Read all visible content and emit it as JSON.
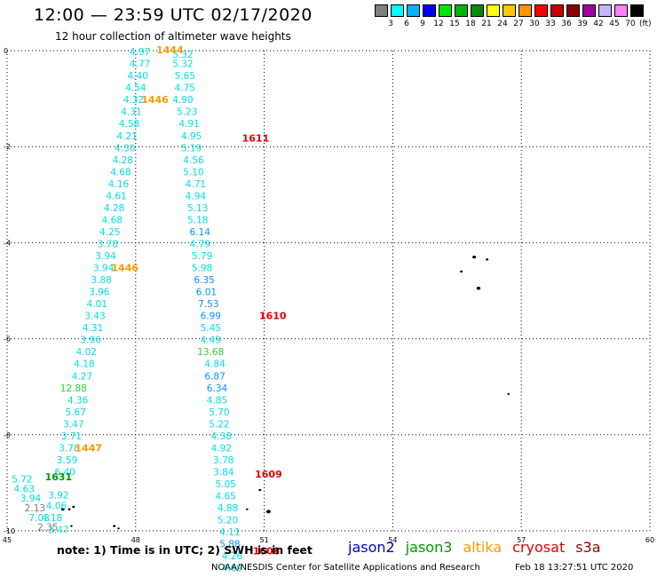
{
  "header": {
    "title": "12:00 — 23:59 UTC 02/17/2020",
    "subtitle": "12 hour collection of altimeter wave heights"
  },
  "legend": {
    "colors": [
      "#7f7f7f",
      "#00ffff",
      "#00b4ff",
      "#0000ff",
      "#00e600",
      "#00b400",
      "#008c00",
      "#ffff00",
      "#ffc800",
      "#ff9600",
      "#ff0000",
      "#c80000",
      "#8c0000",
      "#a000a0",
      "#c8b4ff",
      "#ff80ff",
      "#000000"
    ],
    "labels": [
      "3",
      "6",
      "9",
      "12",
      "15",
      "18",
      "21",
      "24",
      "27",
      "30",
      "33",
      "36",
      "39",
      "42",
      "45",
      "70"
    ],
    "unit": "(ft)"
  },
  "map": {
    "lon_range": [
      45,
      60
    ],
    "lat_range": [
      -10,
      0
    ],
    "x_ticks": [
      "45",
      "48",
      "51",
      "54",
      "57",
      "60"
    ],
    "y_ticks": [
      "0",
      "-2",
      "-4",
      "-6",
      "-8",
      "-10"
    ],
    "grid": "dotted",
    "colors": {
      "cyan": "#00e0e6",
      "blue": "#0096ff",
      "green": "#33cc33",
      "darkgreen": "#009600",
      "orange": "#ff9600",
      "red": "#e60000",
      "gray": "#7f7f7f"
    },
    "wave_heights": [
      {
        "text": "4.97",
        "lon": 48.1,
        "lat": -0.02,
        "c": "cyan"
      },
      {
        "text": "4.77",
        "lon": 48.1,
        "lat": -0.27,
        "c": "cyan"
      },
      {
        "text": "4.40",
        "lon": 48.05,
        "lat": -0.52,
        "c": "cyan"
      },
      {
        "text": "4.54",
        "lon": 48.0,
        "lat": -0.77,
        "c": "cyan"
      },
      {
        "text": "4.32",
        "lon": 47.95,
        "lat": -1.02,
        "c": "cyan"
      },
      {
        "text": "4.31",
        "lon": 47.9,
        "lat": -1.27,
        "c": "cyan"
      },
      {
        "text": "4.58",
        "lon": 47.85,
        "lat": -1.52,
        "c": "cyan"
      },
      {
        "text": "4.21",
        "lon": 47.8,
        "lat": -1.77,
        "c": "cyan"
      },
      {
        "text": "4.30",
        "lon": 47.75,
        "lat": -2.02,
        "c": "cyan"
      },
      {
        "text": "4.28",
        "lon": 47.7,
        "lat": -2.27,
        "c": "cyan"
      },
      {
        "text": "4.68",
        "lon": 47.65,
        "lat": -2.52,
        "c": "cyan"
      },
      {
        "text": "4.16",
        "lon": 47.6,
        "lat": -2.77,
        "c": "cyan"
      },
      {
        "text": "4.61",
        "lon": 47.55,
        "lat": -3.02,
        "c": "cyan"
      },
      {
        "text": "4.28",
        "lon": 47.5,
        "lat": -3.27,
        "c": "cyan"
      },
      {
        "text": "4.68",
        "lon": 47.45,
        "lat": -3.52,
        "c": "cyan"
      },
      {
        "text": "4.25",
        "lon": 47.4,
        "lat": -3.77,
        "c": "cyan"
      },
      {
        "text": "3.78",
        "lon": 47.35,
        "lat": -4.02,
        "c": "cyan"
      },
      {
        "text": "3.94",
        "lon": 47.3,
        "lat": -4.27,
        "c": "cyan"
      },
      {
        "text": "3.94",
        "lon": 47.25,
        "lat": -4.52,
        "c": "cyan"
      },
      {
        "text": "3.88",
        "lon": 47.2,
        "lat": -4.77,
        "c": "cyan"
      },
      {
        "text": "3.96",
        "lon": 47.15,
        "lat": -5.02,
        "c": "cyan"
      },
      {
        "text": "4.01",
        "lon": 47.1,
        "lat": -5.27,
        "c": "cyan"
      },
      {
        "text": "3.43",
        "lon": 47.05,
        "lat": -5.52,
        "c": "cyan"
      },
      {
        "text": "4.31",
        "lon": 47.0,
        "lat": -5.77,
        "c": "cyan"
      },
      {
        "text": "3.96",
        "lon": 46.95,
        "lat": -6.02,
        "c": "cyan"
      },
      {
        "text": "4.02",
        "lon": 46.85,
        "lat": -6.27,
        "c": "cyan"
      },
      {
        "text": "4.18",
        "lon": 46.8,
        "lat": -6.52,
        "c": "cyan"
      },
      {
        "text": "4.27",
        "lon": 46.75,
        "lat": -6.77,
        "c": "cyan"
      },
      {
        "text": "12.88",
        "lon": 46.55,
        "lat": -7.02,
        "c": "green"
      },
      {
        "text": "4.36",
        "lon": 46.65,
        "lat": -7.27,
        "c": "cyan"
      },
      {
        "text": "5.67",
        "lon": 46.6,
        "lat": -7.52,
        "c": "cyan"
      },
      {
        "text": "3.47",
        "lon": 46.55,
        "lat": -7.77,
        "c": "cyan"
      },
      {
        "text": "3.71",
        "lon": 46.5,
        "lat": -8.02,
        "c": "cyan"
      },
      {
        "text": "3.78",
        "lon": 46.45,
        "lat": -8.27,
        "c": "cyan"
      },
      {
        "text": "3.59",
        "lon": 46.4,
        "lat": -8.52,
        "c": "cyan"
      },
      {
        "text": "6.40",
        "lon": 46.35,
        "lat": -8.77,
        "c": "cyan"
      },
      {
        "text": "5.72",
        "lon": 45.35,
        "lat": -8.92,
        "c": "cyan"
      },
      {
        "text": "4.63",
        "lon": 45.4,
        "lat": -9.12,
        "c": "cyan"
      },
      {
        "text": "3.94",
        "lon": 45.55,
        "lat": -9.32,
        "c": "cyan"
      },
      {
        "text": "2.13",
        "lon": 45.65,
        "lat": -9.52,
        "c": "gray"
      },
      {
        "text": "7.03",
        "lon": 45.75,
        "lat": -9.72,
        "c": "cyan"
      },
      {
        "text": "2.35",
        "lon": 45.95,
        "lat": -9.92,
        "c": "gray"
      },
      {
        "text": "3.92",
        "lon": 46.2,
        "lat": -9.25,
        "c": "cyan"
      },
      {
        "text": "4.06",
        "lon": 46.15,
        "lat": -9.47,
        "c": "cyan"
      },
      {
        "text": "4.18",
        "lon": 46.05,
        "lat": -9.72,
        "c": "cyan"
      },
      {
        "text": "3.47",
        "lon": 46.2,
        "lat": -9.97,
        "c": "cyan"
      },
      {
        "text": "5.32",
        "lon": 49.1,
        "lat": -0.07,
        "c": "cyan"
      },
      {
        "text": "5.32",
        "lon": 49.1,
        "lat": -0.27,
        "c": "cyan"
      },
      {
        "text": "5.65",
        "lon": 49.15,
        "lat": -0.52,
        "c": "cyan"
      },
      {
        "text": "4.75",
        "lon": 49.15,
        "lat": -0.77,
        "c": "cyan"
      },
      {
        "text": "4.90",
        "lon": 49.1,
        "lat": -1.02,
        "c": "cyan"
      },
      {
        "text": "5.23",
        "lon": 49.2,
        "lat": -1.27,
        "c": "cyan"
      },
      {
        "text": "4.91",
        "lon": 49.25,
        "lat": -1.52,
        "c": "cyan"
      },
      {
        "text": "4.95",
        "lon": 49.3,
        "lat": -1.77,
        "c": "cyan"
      },
      {
        "text": "5.19",
        "lon": 49.3,
        "lat": -2.02,
        "c": "cyan"
      },
      {
        "text": "4.56",
        "lon": 49.35,
        "lat": -2.27,
        "c": "cyan"
      },
      {
        "text": "5.10",
        "lon": 49.35,
        "lat": -2.52,
        "c": "cyan"
      },
      {
        "text": "4.71",
        "lon": 49.4,
        "lat": -2.77,
        "c": "cyan"
      },
      {
        "text": "4.94",
        "lon": 49.4,
        "lat": -3.02,
        "c": "cyan"
      },
      {
        "text": "5.13",
        "lon": 49.45,
        "lat": -3.27,
        "c": "cyan"
      },
      {
        "text": "5.18",
        "lon": 49.45,
        "lat": -3.52,
        "c": "cyan"
      },
      {
        "text": "6.14",
        "lon": 49.5,
        "lat": -3.77,
        "c": "blue"
      },
      {
        "text": "4.79",
        "lon": 49.5,
        "lat": -4.02,
        "c": "cyan"
      },
      {
        "text": "5.79",
        "lon": 49.55,
        "lat": -4.27,
        "c": "cyan"
      },
      {
        "text": "5.98",
        "lon": 49.55,
        "lat": -4.52,
        "c": "cyan"
      },
      {
        "text": "6.35",
        "lon": 49.6,
        "lat": -4.77,
        "c": "blue"
      },
      {
        "text": "6.01",
        "lon": 49.65,
        "lat": -5.02,
        "c": "blue"
      },
      {
        "text": "7.53",
        "lon": 49.7,
        "lat": -5.27,
        "c": "blue"
      },
      {
        "text": "6.99",
        "lon": 49.75,
        "lat": -5.52,
        "c": "blue"
      },
      {
        "text": "5.45",
        "lon": 49.75,
        "lat": -5.77,
        "c": "cyan"
      },
      {
        "text": "4.49",
        "lon": 49.75,
        "lat": -6.02,
        "c": "cyan"
      },
      {
        "text": "13.68",
        "lon": 49.75,
        "lat": -6.27,
        "c": "green"
      },
      {
        "text": "4.84",
        "lon": 49.85,
        "lat": -6.52,
        "c": "cyan"
      },
      {
        "text": "6.87",
        "lon": 49.85,
        "lat": -6.77,
        "c": "blue"
      },
      {
        "text": "6.34",
        "lon": 49.9,
        "lat": -7.02,
        "c": "blue"
      },
      {
        "text": "4.85",
        "lon": 49.9,
        "lat": -7.27,
        "c": "cyan"
      },
      {
        "text": "5.70",
        "lon": 49.95,
        "lat": -7.52,
        "c": "cyan"
      },
      {
        "text": "5.22",
        "lon": 49.95,
        "lat": -7.77,
        "c": "cyan"
      },
      {
        "text": "4.38",
        "lon": 50.0,
        "lat": -8.02,
        "c": "cyan"
      },
      {
        "text": "4.92",
        "lon": 50.0,
        "lat": -8.27,
        "c": "cyan"
      },
      {
        "text": "3.78",
        "lon": 50.05,
        "lat": -8.52,
        "c": "cyan"
      },
      {
        "text": "3.84",
        "lon": 50.05,
        "lat": -8.77,
        "c": "cyan"
      },
      {
        "text": "5.05",
        "lon": 50.1,
        "lat": -9.02,
        "c": "cyan"
      },
      {
        "text": "4.65",
        "lon": 50.1,
        "lat": -9.27,
        "c": "cyan"
      },
      {
        "text": "4.88",
        "lon": 50.15,
        "lat": -9.52,
        "c": "cyan"
      },
      {
        "text": "5.20",
        "lon": 50.15,
        "lat": -9.77,
        "c": "cyan"
      },
      {
        "text": "4.11",
        "lon": 50.2,
        "lat": -10.02,
        "c": "cyan"
      },
      {
        "text": "5.88",
        "lon": 50.2,
        "lat": -10.27,
        "c": "blue"
      },
      {
        "text": "4.26",
        "lon": 50.25,
        "lat": -10.52,
        "c": "cyan"
      },
      {
        "text": "4.69",
        "lon": 50.25,
        "lat": -10.77,
        "c": "cyan"
      }
    ],
    "pass_times": [
      {
        "text": "1444",
        "lon": 48.8,
        "lat": 0.02,
        "c": "orange"
      },
      {
        "text": "1446",
        "lon": 48.45,
        "lat": -1.02,
        "c": "orange"
      },
      {
        "text": "1446",
        "lon": 47.75,
        "lat": -4.52,
        "c": "orange"
      },
      {
        "text": "1447",
        "lon": 46.9,
        "lat": -8.27,
        "c": "orange"
      },
      {
        "text": "1611",
        "lon": 50.8,
        "lat": -1.82,
        "c": "red"
      },
      {
        "text": "1610",
        "lon": 51.2,
        "lat": -5.52,
        "c": "red"
      },
      {
        "text": "1609",
        "lon": 51.1,
        "lat": -8.82,
        "c": "red"
      },
      {
        "text": "1608",
        "lon": 51.05,
        "lat": -10.42,
        "c": "red"
      },
      {
        "text": "1631",
        "lon": 46.2,
        "lat": -8.87,
        "c": "darkgreen"
      }
    ],
    "islands": [
      {
        "lon": 55.6,
        "lat": -4.6,
        "r": 1.5
      },
      {
        "lon": 55.9,
        "lat": -4.3,
        "r": 2
      },
      {
        "lon": 56.2,
        "lat": -4.35,
        "r": 1.5
      },
      {
        "lon": 56.0,
        "lat": -4.95,
        "r": 2.2
      },
      {
        "lon": 56.7,
        "lat": -7.15,
        "r": 1.3
      },
      {
        "lon": 50.9,
        "lat": -9.15,
        "r": 1.5
      },
      {
        "lon": 51.1,
        "lat": -9.6,
        "r": 2.5
      },
      {
        "lon": 50.6,
        "lat": -9.55,
        "r": 1.3
      },
      {
        "lon": 46.3,
        "lat": -9.55,
        "r": 2
      },
      {
        "lon": 46.45,
        "lat": -9.55,
        "r": 1.5
      },
      {
        "lon": 46.55,
        "lat": -9.5,
        "r": 1.5
      },
      {
        "lon": 47.5,
        "lat": -9.9,
        "r": 1.5
      },
      {
        "lon": 47.6,
        "lat": -9.95,
        "r": 1.3
      },
      {
        "lon": 46.5,
        "lat": -9.9,
        "r": 1.3
      }
    ]
  },
  "footer": {
    "note": "note:  1) Time is in UTC; 2) SWH is in feet",
    "satellites": [
      {
        "name": "jason2",
        "color": "#0000cc"
      },
      {
        "name": "jason3",
        "color": "#009600"
      },
      {
        "name": "altika",
        "color": "#ff9600"
      },
      {
        "name": "cryosat",
        "color": "#dd0000"
      },
      {
        "name": "s3a",
        "color": "#990000"
      }
    ],
    "credit": "NOAA/NESDIS Center for Satellite Applications and Research",
    "timestamp": "Feb 18 13:27:51 UTC 2020"
  }
}
